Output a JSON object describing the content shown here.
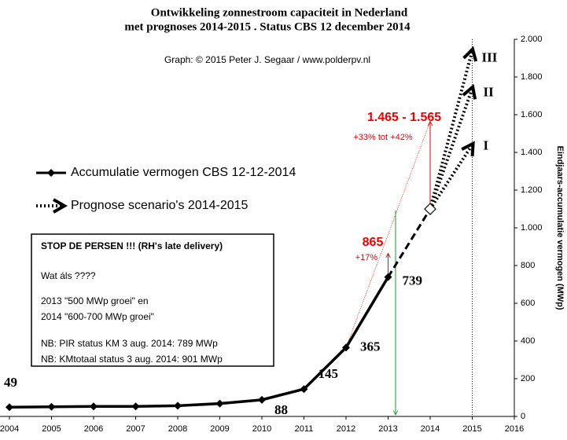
{
  "chart_data": {
    "type": "line",
    "title": "Ontwikkeling  zonnestroom capaciteit  in  Nederland",
    "subtitle": "met prognoses 2014-2015 . Status CBS 12 december 2014",
    "credit": "Graph: © 2015  Peter J. Segaar / www.polderpv.nl",
    "y_axis_label": "Eindjaars-accumulatie vermogen (MWp)",
    "xlim": [
      2004,
      2016
    ],
    "xticks": [
      2004,
      2005,
      2006,
      2007,
      2008,
      2009,
      2010,
      2011,
      2012,
      2013,
      2014,
      2015,
      2016
    ],
    "ylim": [
      0,
      2000
    ],
    "yticks": [
      0,
      200,
      400,
      600,
      800,
      {
        "value": 1000,
        "label": "1.000"
      },
      {
        "value": 1200,
        "label": "1.200"
      },
      {
        "value": 1400,
        "label": "1.400"
      },
      {
        "value": 1600,
        "label": "1.600"
      },
      {
        "value": 1800,
        "label": "1.800"
      },
      {
        "value": 2000,
        "label": "2.000"
      }
    ],
    "series": [
      {
        "name": "Accumulatie vermogen CBS 12-12-2014",
        "color": "#000000",
        "x": [
          2004,
          2005,
          2006,
          2007,
          2008,
          2009,
          2010,
          2011,
          2012,
          2013
        ],
        "values": [
          49,
          51,
          53,
          53,
          57,
          68,
          88,
          145,
          365,
          739
        ],
        "value_labels": [
          "49",
          null,
          null,
          null,
          null,
          null,
          "88",
          "145",
          "365",
          "739"
        ]
      },
      {
        "name": "Prognose scenario's 2014-2015",
        "color": "#000000",
        "x": [
          2013,
          2014
        ],
        "values": [
          739,
          1100
        ]
      }
    ],
    "scenarios": [
      {
        "label": "I",
        "x": [
          2014,
          2015
        ],
        "values": [
          1100,
          1440
        ]
      },
      {
        "label": "II",
        "x": [
          2014,
          2015
        ],
        "values": [
          1100,
          1740
        ]
      },
      {
        "label": "III",
        "x": [
          2014,
          2015
        ],
        "values": [
          1100,
          1940
        ]
      }
    ],
    "annotations": [
      {
        "text": "865",
        "note": "+17%",
        "x": 2013,
        "value": 865
      },
      {
        "text": "1.465 - 1.565",
        "note": "+33% tot +42%",
        "x": 2014,
        "value": 1565
      }
    ],
    "box": {
      "title": "STOP DE PERSEN !!! (RH's late delivery)",
      "lines": [
        "Wat áls ????",
        "2013  \"500  MWp groei\" en",
        "2014   \"600-700  MWp groei\"",
        "NB: PIR status KM 3 aug. 2014:  789  MWp",
        "NB: KMtotaal status  3 aug. 2014:  901  MWp"
      ]
    }
  }
}
